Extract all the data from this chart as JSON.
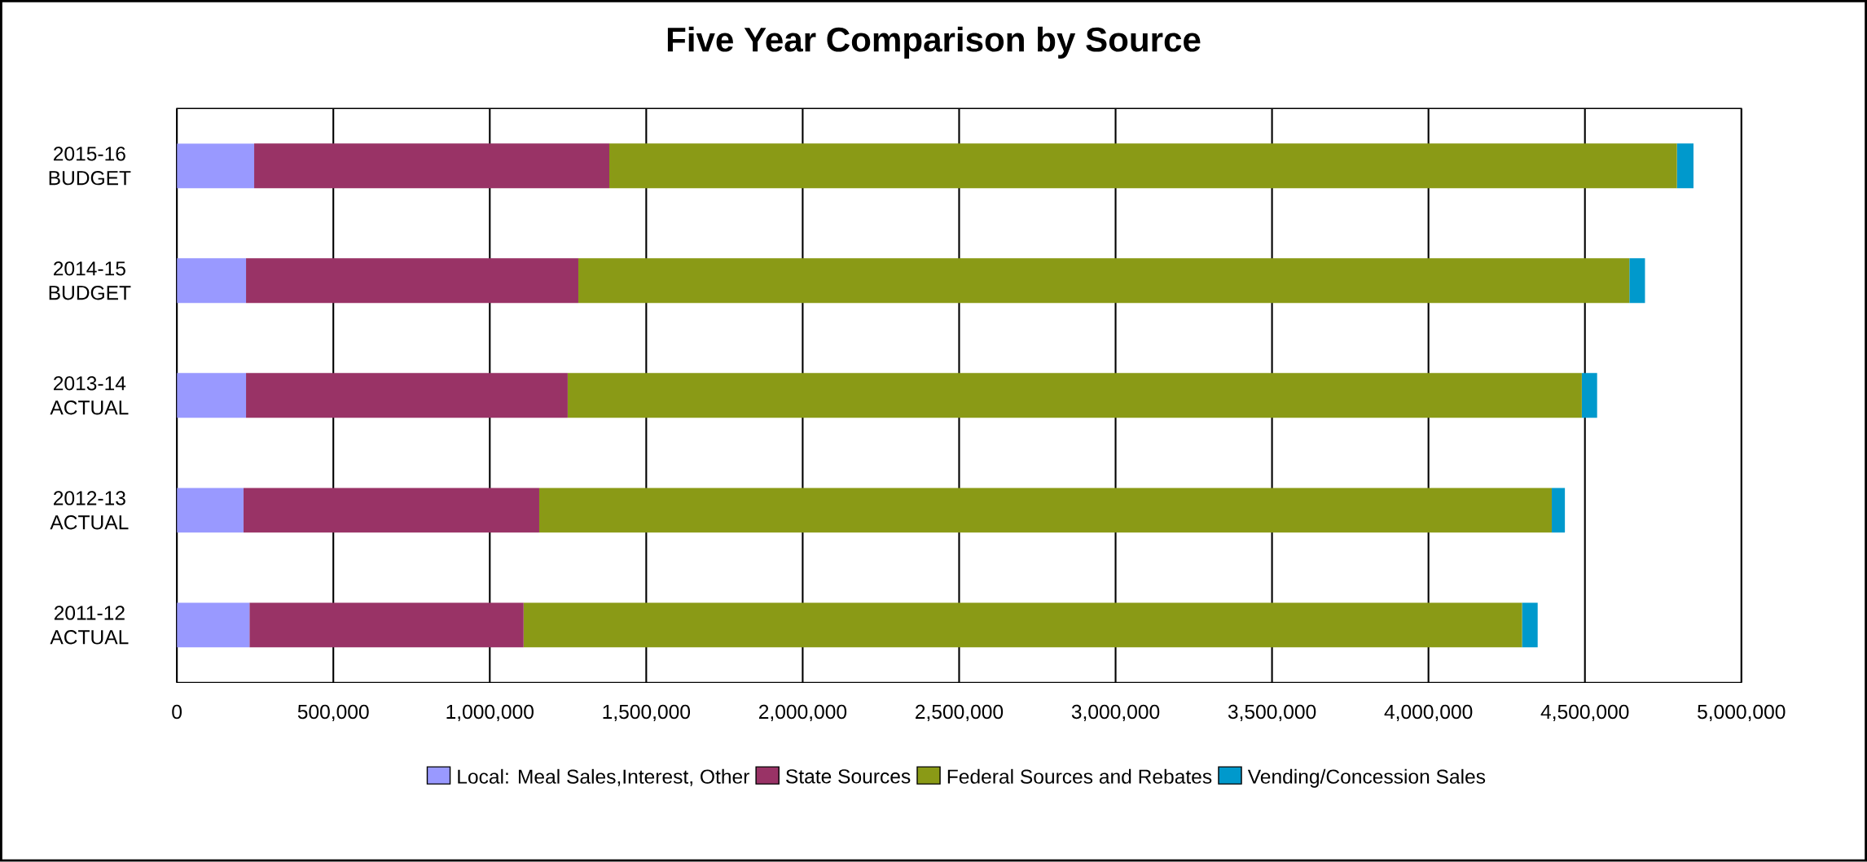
{
  "chart_data": {
    "type": "bar",
    "orientation": "horizontal",
    "stacked": true,
    "title": "Five Year Comparison by Source",
    "categories": [
      "2015-16 BUDGET",
      "2014-15 BUDGET",
      "2013-14 ACTUAL",
      "2012-13 ACTUAL",
      "2011-12 ACTUAL"
    ],
    "series": [
      {
        "name": "Local: Meal Sales,Interest, Other",
        "color": "#9999ff",
        "values": [
          247000,
          221000,
          221000,
          213000,
          232000
        ]
      },
      {
        "name": "State Sources",
        "color": "#993366",
        "values": [
          1135000,
          1062000,
          1028000,
          945000,
          876000
        ]
      },
      {
        "name": "Federal Sources and Rebates",
        "color": "#8a9a16",
        "values": [
          3412000,
          3359000,
          3241000,
          3236000,
          3191000
        ]
      },
      {
        "name": "Vending/Concession Sales",
        "color": "#0099cc",
        "values": [
          53000,
          50000,
          49000,
          42000,
          50000
        ]
      }
    ],
    "xlim": [
      0,
      5000000
    ],
    "xticks": [
      0,
      {
        "value": 500000,
        "label": "500,000"
      },
      {
        "value": 1000000,
        "label": "1,000,000"
      },
      {
        "value": 1500000,
        "label": "1,500,000"
      },
      {
        "value": 2000000,
        "label": "2,000,000"
      },
      {
        "value": 2500000,
        "label": "2,500,000"
      },
      {
        "value": 3000000,
        "label": "3,000,000"
      },
      {
        "value": 3500000,
        "label": "3,500,000"
      },
      {
        "value": 4000000,
        "label": "4,000,000"
      },
      {
        "value": 4500000,
        "label": "4,500,000"
      },
      {
        "value": 5000000,
        "label": "5,000,000"
      }
    ],
    "grid": "x",
    "legend": "bottom"
  }
}
